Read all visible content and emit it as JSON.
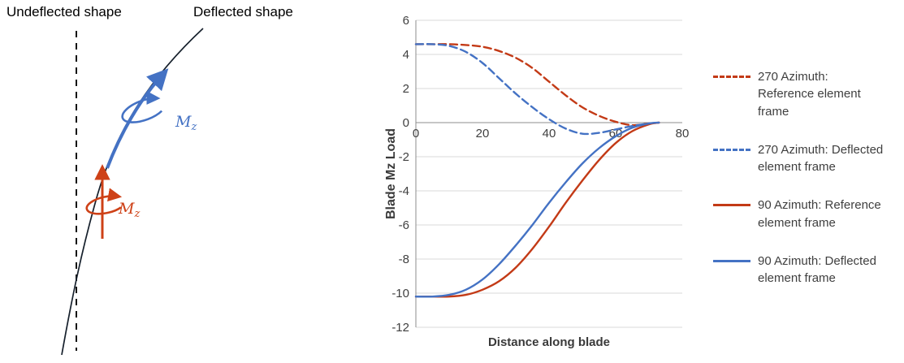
{
  "diagram": {
    "undeflected_label": "Undeflected shape",
    "deflected_label": "Deflected shape",
    "moment_symbol": "M",
    "moment_subscript": "z",
    "blue": "#4472C4",
    "red": "#CE4117"
  },
  "chart_data": {
    "type": "line",
    "title": "",
    "xlabel": "Distance along blade",
    "ylabel": "Blade Mz Load",
    "xlim": [
      0,
      80
    ],
    "ylim": [
      -12,
      6
    ],
    "xticks": [
      0,
      20,
      40,
      60,
      80
    ],
    "yticks": [
      6,
      4,
      2,
      0,
      -2,
      -4,
      -6,
      -8,
      -10,
      -12
    ],
    "grid": true,
    "legend_position": "right",
    "x": [
      0,
      5,
      10,
      15,
      20,
      25,
      30,
      35,
      40,
      45,
      50,
      55,
      60,
      65,
      70,
      73
    ],
    "series": [
      {
        "name": "270 Azimuth: Reference element frame",
        "color": "#C33A16",
        "dashed": true,
        "values": [
          4.6,
          4.6,
          4.6,
          4.55,
          4.45,
          4.2,
          3.8,
          3.2,
          2.4,
          1.6,
          0.9,
          0.4,
          0.05,
          -0.15,
          -0.05,
          0
        ]
      },
      {
        "name": "270 Azimuth: Deflected element frame",
        "color": "#4472C4",
        "dashed": true,
        "values": [
          4.6,
          4.6,
          4.5,
          4.15,
          3.5,
          2.6,
          1.7,
          0.9,
          0.2,
          -0.35,
          -0.65,
          -0.6,
          -0.4,
          -0.2,
          -0.05,
          0
        ]
      },
      {
        "name": "90 Azimuth: Reference element frame",
        "color": "#C33A16",
        "dashed": false,
        "values": [
          -10.2,
          -10.2,
          -10.2,
          -10.1,
          -9.8,
          -9.3,
          -8.5,
          -7.4,
          -6.1,
          -4.7,
          -3.4,
          -2.2,
          -1.2,
          -0.5,
          -0.1,
          0
        ]
      },
      {
        "name": "90 Azimuth: Deflected element frame",
        "color": "#4472C4",
        "dashed": false,
        "values": [
          -10.2,
          -10.2,
          -10.1,
          -9.8,
          -9.2,
          -8.3,
          -7.2,
          -6.0,
          -4.7,
          -3.5,
          -2.4,
          -1.5,
          -0.8,
          -0.3,
          -0.05,
          0
        ]
      }
    ]
  }
}
